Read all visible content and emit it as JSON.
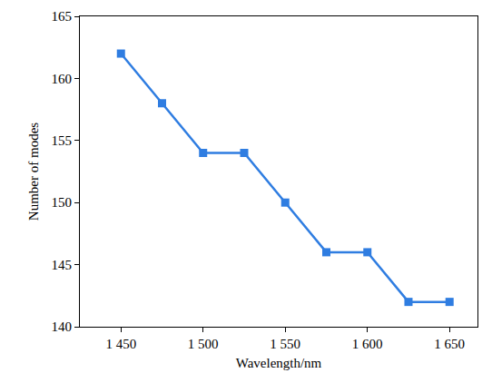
{
  "chart_data": {
    "type": "line",
    "x_label": "Wavelength/nm",
    "y_label": "Number of modes",
    "x": [
      1450,
      1475,
      1500,
      1525,
      1550,
      1575,
      1600,
      1625,
      1650
    ],
    "values": [
      162,
      158,
      154,
      154,
      150,
      146,
      146,
      142,
      142
    ],
    "color": "#2f7de1",
    "marker": "square",
    "line_style": "solid",
    "xlim": [
      1425,
      1667
    ],
    "xticks": [
      {
        "value": 1450,
        "label": "1 450"
      },
      {
        "value": 1500,
        "label": "1 500"
      },
      {
        "value": 1550,
        "label": "1 550"
      },
      {
        "value": 1600,
        "label": "1 600"
      },
      {
        "value": 1650,
        "label": "1 650"
      }
    ],
    "ylim": [
      140,
      165
    ],
    "yticks": [
      140,
      145,
      150,
      155,
      160,
      165
    ],
    "grid": false
  }
}
